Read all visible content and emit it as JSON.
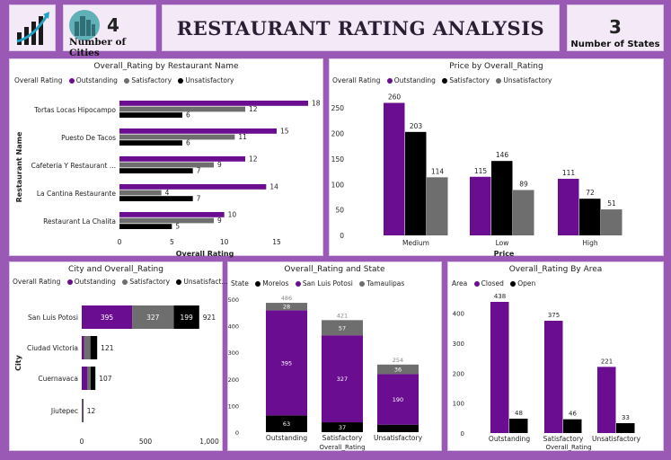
{
  "header": {
    "title": "RESTAURANT RATING ANALYSIS",
    "cities_value": "4",
    "cities_label": "Number of Cities",
    "states_value": "3",
    "states_label": "Number of States"
  },
  "colors": {
    "outstanding": "#6a0d91",
    "satisfactory": "#6e6e6e",
    "unsatisfactory": "#000000",
    "morelos": "#000000",
    "san_luis_potosi": "#6a0d91",
    "tamaulipas": "#6e6e6e",
    "closed": "#6a0d91",
    "open": "#000000"
  },
  "chart_data": [
    {
      "id": "by_restaurant",
      "type": "bar",
      "orientation": "horizontal",
      "title": "Overall_Rating by Restaurant Name",
      "legend_title": "Overall Rating",
      "xlabel": "Overall Rating",
      "ylabel": "Restaurant Name",
      "xlim": [
        0,
        18
      ],
      "xticks": [
        "0",
        "5",
        "10",
        "15"
      ],
      "categories": [
        "Tortas Locas Hipocampo",
        "Puesto De Tacos",
        "Cafeteria Y Restaurant ...",
        "La Cantina Restaurante",
        "Restaurant La Chalita"
      ],
      "series": [
        {
          "name": "Outstanding",
          "values": [
            18,
            15,
            12,
            14,
            10
          ]
        },
        {
          "name": "Satisfactory",
          "values": [
            12,
            11,
            9,
            4,
            9
          ]
        },
        {
          "name": "Unsatisfactory",
          "values": [
            6,
            6,
            7,
            7,
            5
          ]
        }
      ]
    },
    {
      "id": "price",
      "type": "bar",
      "title": "Price by Overall_Rating",
      "legend_title": "Overall Rating",
      "xlabel": "Price",
      "ylabel": "",
      "ylim": [
        0,
        275
      ],
      "yticks": [
        "0",
        "50",
        "100",
        "150",
        "200",
        "250"
      ],
      "categories": [
        "Medium",
        "Low",
        "High"
      ],
      "series": [
        {
          "name": "Outstanding",
          "values": [
            260,
            115,
            111
          ]
        },
        {
          "name": "Satisfactory",
          "values": [
            203,
            146,
            72
          ]
        },
        {
          "name": "Unsatisfactory",
          "values": [
            114,
            89,
            51
          ]
        }
      ]
    },
    {
      "id": "city",
      "type": "bar",
      "orientation": "horizontal",
      "stacked": true,
      "title": "City and Overall_Rating",
      "legend_title": "Overall Rating",
      "legend_items": [
        "Outstanding",
        "Satisfactory",
        "Unsatisfact..."
      ],
      "xlabel": "",
      "ylabel": "City",
      "xlim": [
        0,
        1000
      ],
      "xticks": [
        "0",
        "500",
        "1,000"
      ],
      "categories": [
        "San Luis Potosi",
        "Ciudad Victoria",
        "Cuernavaca",
        "Jiutepec"
      ],
      "totals": [
        921,
        121,
        107,
        12
      ],
      "series": [
        {
          "name": "Outstanding",
          "values": [
            395,
            18,
            45,
            2
          ],
          "labels": [
            "395",
            "",
            "",
            ""
          ]
        },
        {
          "name": "Satisfactory",
          "values": [
            327,
            50,
            25,
            5
          ],
          "labels": [
            "327",
            "",
            "",
            ""
          ]
        },
        {
          "name": "Unsatisfactory",
          "values": [
            199,
            53,
            37,
            5
          ],
          "labels": [
            "199",
            "",
            "",
            ""
          ]
        }
      ]
    },
    {
      "id": "state",
      "type": "bar",
      "stacked": true,
      "title": "Overall_Rating and State",
      "legend_title": "State",
      "xlabel": "Overall_Rating",
      "ylabel": "",
      "ylim": [
        0,
        520
      ],
      "yticks": [
        "0",
        "100",
        "200",
        "300",
        "400",
        "500"
      ],
      "categories": [
        "Outstanding",
        "Satisfactory",
        "Unsatisfactory"
      ],
      "totals": [
        486,
        421,
        254
      ],
      "series": [
        {
          "name": "Morelos",
          "values": [
            63,
            37,
            28
          ],
          "labels": [
            "63",
            "37",
            ""
          ]
        },
        {
          "name": "San Luis Potosi",
          "values": [
            395,
            327,
            190
          ],
          "labels": [
            "395",
            "327",
            "190"
          ]
        },
        {
          "name": "Tamaulipas",
          "values": [
            28,
            57,
            36
          ],
          "labels": [
            "28",
            "57",
            "36"
          ]
        }
      ]
    },
    {
      "id": "area",
      "type": "bar",
      "title": "Overall_Rating By Area",
      "legend_title": "Area",
      "xlabel": "Overall_Rating",
      "ylabel": "",
      "ylim": [
        0,
        450
      ],
      "yticks": [
        "0",
        "100",
        "200",
        "300",
        "400"
      ],
      "categories": [
        "Outstanding",
        "Satisfactory",
        "Unsatisfactory"
      ],
      "series": [
        {
          "name": "Closed",
          "values": [
            438,
            375,
            221
          ]
        },
        {
          "name": "Open",
          "values": [
            48,
            46,
            33
          ]
        }
      ]
    }
  ]
}
